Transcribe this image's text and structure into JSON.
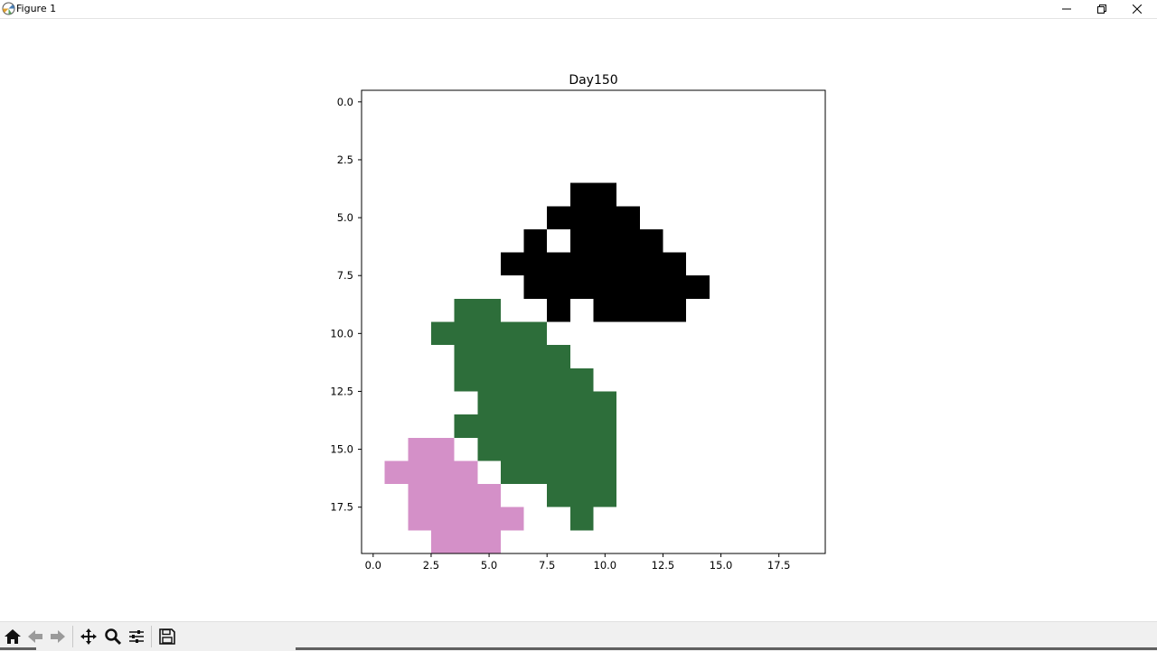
{
  "window": {
    "title": "Figure 1",
    "app_icon": "matplotlib-icon",
    "controls": [
      "minimize-icon",
      "restore-icon",
      "close-icon"
    ]
  },
  "toolbar": {
    "buttons": [
      "home-icon",
      "back-arrow-icon",
      "forward-arrow-icon",
      "pan-icon",
      "zoom-icon",
      "configure-subplots-icon",
      "save-icon"
    ]
  },
  "chart_data": {
    "type": "heatmap",
    "title": "Day150",
    "xlabel": "",
    "ylabel": "",
    "xlim": [
      -0.5,
      19.5
    ],
    "ylim": [
      19.5,
      -0.5
    ],
    "xticks": [
      0.0,
      2.5,
      5.0,
      7.5,
      10.0,
      12.5,
      15.0,
      17.5
    ],
    "xtick_labels": [
      "0.0",
      "2.5",
      "5.0",
      "7.5",
      "10.0",
      "12.5",
      "15.0",
      "17.5"
    ],
    "yticks": [
      0.0,
      2.5,
      5.0,
      7.5,
      10.0,
      12.5,
      15.0,
      17.5
    ],
    "ytick_labels": [
      "0.0",
      "2.5",
      "5.0",
      "7.5",
      "10.0",
      "12.5",
      "15.0",
      "17.5"
    ],
    "grid": false,
    "colors": {
      "0": "#ffffff",
      "1": "#000000",
      "2": "#2d6e3a",
      "3": "#d490c8"
    },
    "grid_values": [
      [
        0,
        0,
        0,
        0,
        0,
        0,
        0,
        0,
        0,
        0,
        0,
        0,
        0,
        0,
        0,
        0,
        0,
        0,
        0,
        0
      ],
      [
        0,
        0,
        0,
        0,
        0,
        0,
        0,
        0,
        0,
        0,
        0,
        0,
        0,
        0,
        0,
        0,
        0,
        0,
        0,
        0
      ],
      [
        0,
        0,
        0,
        0,
        0,
        0,
        0,
        0,
        0,
        0,
        0,
        0,
        0,
        0,
        0,
        0,
        0,
        0,
        0,
        0
      ],
      [
        0,
        0,
        0,
        0,
        0,
        0,
        0,
        0,
        0,
        0,
        0,
        0,
        0,
        0,
        0,
        0,
        0,
        0,
        0,
        0
      ],
      [
        0,
        0,
        0,
        0,
        0,
        0,
        0,
        0,
        0,
        1,
        1,
        0,
        0,
        0,
        0,
        0,
        0,
        0,
        0,
        0
      ],
      [
        0,
        0,
        0,
        0,
        0,
        0,
        0,
        0,
        1,
        1,
        1,
        1,
        0,
        0,
        0,
        0,
        0,
        0,
        0,
        0
      ],
      [
        0,
        0,
        0,
        0,
        0,
        0,
        0,
        1,
        0,
        1,
        1,
        1,
        1,
        0,
        0,
        0,
        0,
        0,
        0,
        0
      ],
      [
        0,
        0,
        0,
        0,
        0,
        0,
        1,
        1,
        1,
        1,
        1,
        1,
        1,
        1,
        0,
        0,
        0,
        0,
        0,
        0
      ],
      [
        0,
        0,
        0,
        0,
        0,
        0,
        0,
        1,
        1,
        1,
        1,
        1,
        1,
        1,
        1,
        0,
        0,
        0,
        0,
        0
      ],
      [
        0,
        0,
        0,
        0,
        2,
        2,
        0,
        0,
        1,
        0,
        1,
        1,
        1,
        1,
        0,
        0,
        0,
        0,
        0,
        0
      ],
      [
        0,
        0,
        0,
        2,
        2,
        2,
        2,
        2,
        0,
        0,
        0,
        0,
        0,
        0,
        0,
        0,
        0,
        0,
        0,
        0
      ],
      [
        0,
        0,
        0,
        0,
        2,
        2,
        2,
        2,
        2,
        0,
        0,
        0,
        0,
        0,
        0,
        0,
        0,
        0,
        0,
        0
      ],
      [
        0,
        0,
        0,
        0,
        2,
        2,
        2,
        2,
        2,
        2,
        0,
        0,
        0,
        0,
        0,
        0,
        0,
        0,
        0,
        0
      ],
      [
        0,
        0,
        0,
        0,
        0,
        2,
        2,
        2,
        2,
        2,
        2,
        0,
        0,
        0,
        0,
        0,
        0,
        0,
        0,
        0
      ],
      [
        0,
        0,
        0,
        0,
        2,
        2,
        2,
        2,
        2,
        2,
        2,
        0,
        0,
        0,
        0,
        0,
        0,
        0,
        0,
        0
      ],
      [
        0,
        0,
        3,
        3,
        0,
        2,
        2,
        2,
        2,
        2,
        2,
        0,
        0,
        0,
        0,
        0,
        0,
        0,
        0,
        0
      ],
      [
        0,
        3,
        3,
        3,
        3,
        0,
        2,
        2,
        2,
        2,
        2,
        0,
        0,
        0,
        0,
        0,
        0,
        0,
        0,
        0
      ],
      [
        0,
        0,
        3,
        3,
        3,
        3,
        0,
        0,
        2,
        2,
        2,
        0,
        0,
        0,
        0,
        0,
        0,
        0,
        0,
        0
      ],
      [
        0,
        0,
        3,
        3,
        3,
        3,
        3,
        0,
        0,
        2,
        0,
        0,
        0,
        0,
        0,
        0,
        0,
        0,
        0,
        0
      ],
      [
        0,
        0,
        0,
        3,
        3,
        3,
        0,
        0,
        0,
        0,
        0,
        0,
        0,
        0,
        0,
        0,
        0,
        0,
        0,
        0
      ]
    ]
  }
}
